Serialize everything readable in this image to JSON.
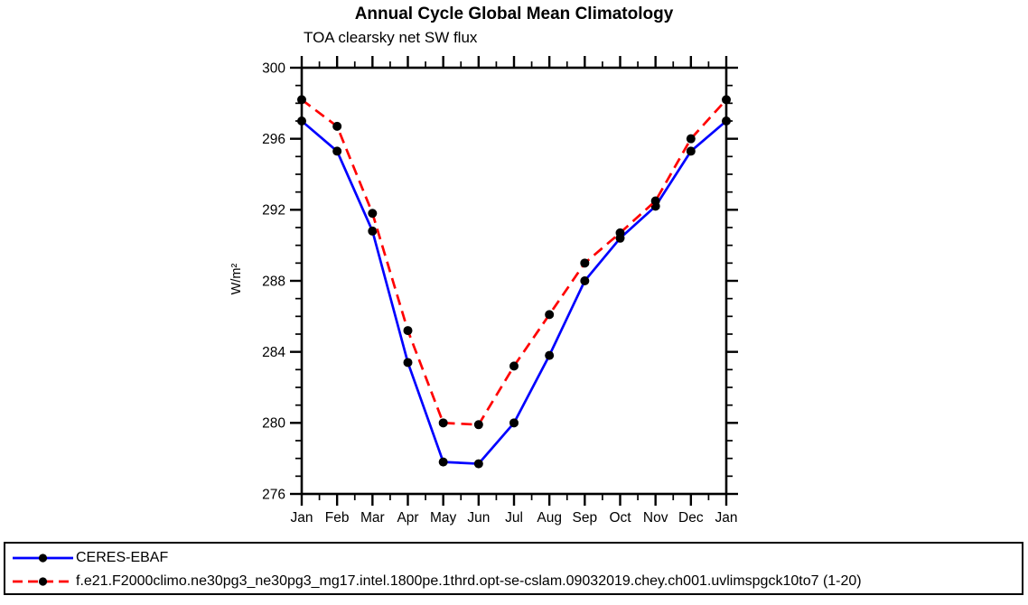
{
  "title": "Annual Cycle Global Mean Climatology",
  "subtitle": "TOA clearsky net SW flux",
  "y_axis_label": "W/m²",
  "colors": {
    "obs_line": "#0000ff",
    "model_line": "#ff0000",
    "marker": "#000000",
    "axis": "#000000",
    "background": "#ffffff"
  },
  "legend": {
    "items": [
      {
        "label": "CERES-EBAF",
        "color": "#0000ff",
        "style": "solid"
      },
      {
        "label": "f.e21.F2000climo.ne30pg3_ne30pg3_mg17.intel.1800pe.1thrd.opt-se-cslam.09032019.chey.ch001.uvlimspgck10to7 (1-20)",
        "color": "#ff0000",
        "style": "dashed"
      }
    ]
  },
  "chart_data": {
    "type": "line",
    "title": "Annual Cycle Global Mean Climatology",
    "subtitle": "TOA clearsky net SW flux",
    "xlabel": "",
    "ylabel": "W/m²",
    "categories": [
      "Jan",
      "Feb",
      "Mar",
      "Apr",
      "May",
      "Jun",
      "Jul",
      "Aug",
      "Sep",
      "Oct",
      "Nov",
      "Dec",
      "Jan"
    ],
    "series": [
      {
        "name": "CERES-EBAF",
        "color": "#0000ff",
        "line_style": "solid",
        "marker": "circle",
        "marker_color": "#000000",
        "values": [
          297.0,
          295.3,
          290.8,
          283.4,
          277.8,
          277.7,
          280.0,
          283.8,
          288.0,
          290.4,
          292.2,
          295.3,
          297.0
        ]
      },
      {
        "name": "f.e21.F2000climo.ne30pg3_ne30pg3_mg17.intel.1800pe.1thrd.opt-se-cslam.09032019.chey.ch001.uvlimspgck10to7 (1-20)",
        "color": "#ff0000",
        "line_style": "dashed",
        "marker": "circle",
        "marker_color": "#000000",
        "values": [
          298.2,
          296.7,
          291.8,
          285.2,
          280.0,
          279.9,
          283.2,
          286.1,
          289.0,
          290.7,
          292.5,
          296.0,
          298.2
        ]
      }
    ],
    "ylim": [
      276,
      300
    ],
    "y_major_ticks": [
      276,
      280,
      284,
      288,
      292,
      296,
      300
    ],
    "y_minor_step": 1,
    "x_minor_step": 0.5,
    "grid": false,
    "ticks_direction": "outward",
    "frame": "box",
    "legend_position": "bottom-left-box"
  }
}
